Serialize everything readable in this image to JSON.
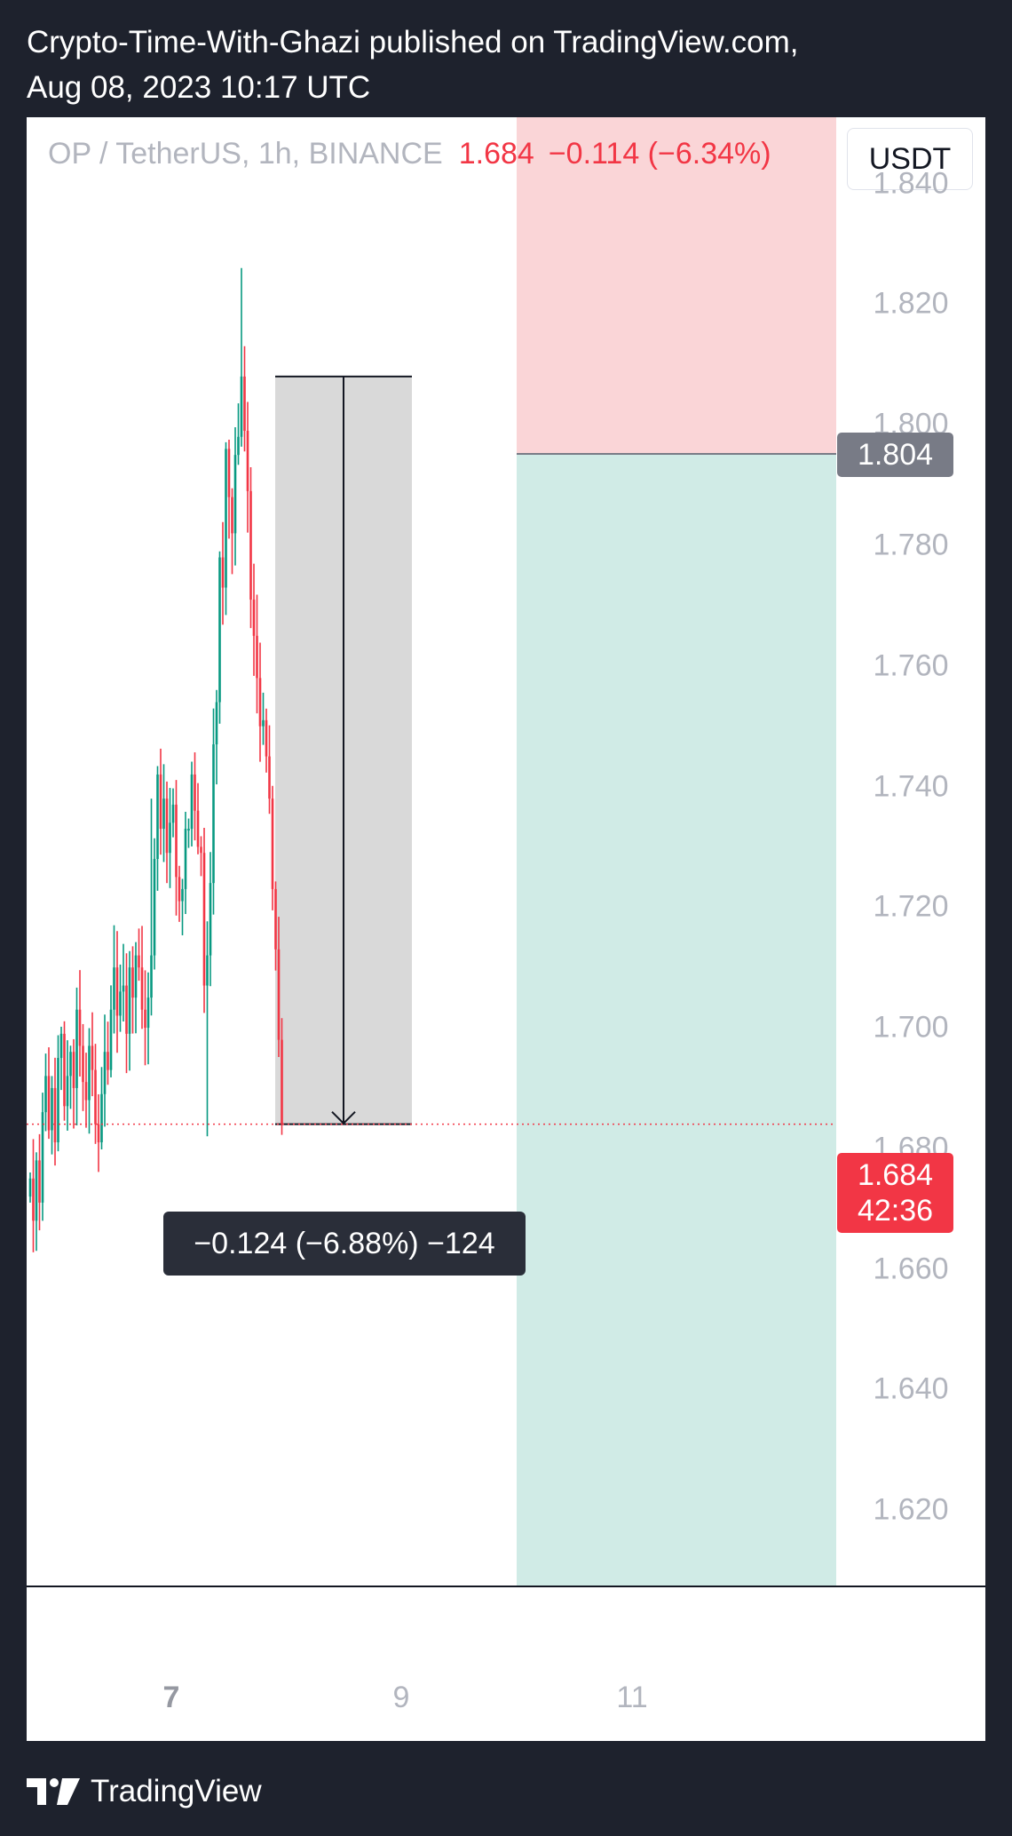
{
  "header": {
    "published_line1": "Crypto-Time-With-Ghazi published on TradingView.com,",
    "published_line2": "Aug 08, 2023 10:17 UTC"
  },
  "symbol": {
    "pair": "OP / TetherUS, 1h, BINANCE",
    "last_price": "1.684",
    "change": "−0.114 (−6.34%)"
  },
  "currency_button": "USDT",
  "price_tags": {
    "target_level": "1.804",
    "current_price": "1.684",
    "countdown": "42:36"
  },
  "measure": {
    "label": "−0.124 (−6.88%) −124",
    "from_price": 1.808,
    "to_price": 1.684
  },
  "brand": {
    "name": "TradingView"
  },
  "colors": {
    "up": "#089981",
    "down": "#f23645",
    "zone_red": "#fad5d7",
    "zone_green": "#d0ebe6",
    "measure_fill": "#d9d9d9"
  },
  "chart_data": {
    "type": "candlestick",
    "timeframe": "1h",
    "y_ticks": [
      "1.840",
      "1.820",
      "1.800",
      "1.780",
      "1.760",
      "1.740",
      "1.720",
      "1.700",
      "1.680",
      "1.660",
      "1.640",
      "1.620"
    ],
    "y_tick_values": [
      1.84,
      1.82,
      1.8,
      1.78,
      1.76,
      1.74,
      1.72,
      1.7,
      1.68,
      1.66,
      1.64,
      1.62
    ],
    "x_ticks": [
      {
        "label": "7",
        "bold": true
      },
      {
        "label": "9",
        "bold": false
      },
      {
        "label": "11",
        "bold": false
      }
    ],
    "ylim": [
      1.6075,
      1.851
    ],
    "current_price": 1.684,
    "horizontal_levels": [
      1.804
    ],
    "candles_close": [
      1.675,
      1.668,
      1.678,
      1.671,
      1.686,
      1.692,
      1.683,
      1.69,
      1.681,
      1.695,
      1.699,
      1.687,
      1.692,
      1.696,
      1.69,
      1.703,
      1.697,
      1.691,
      1.688,
      1.697,
      1.693,
      1.684,
      1.681,
      1.689,
      1.696,
      1.693,
      1.703,
      1.71,
      1.702,
      1.706,
      1.707,
      1.699,
      1.71,
      1.705,
      1.712,
      1.71,
      1.703,
      1.7,
      1.705,
      1.712,
      1.728,
      1.742,
      1.733,
      1.738,
      1.729,
      1.734,
      1.737,
      1.725,
      1.721,
      1.723,
      1.733,
      1.733,
      1.742,
      1.736,
      1.73,
      1.729,
      1.707,
      1.712,
      1.724,
      1.747,
      1.754,
      1.778,
      1.773,
      1.796,
      1.788,
      1.782,
      1.795,
      1.798,
      1.808,
      1.799,
      1.789,
      1.771,
      1.765,
      1.758,
      1.75,
      1.751,
      1.745,
      1.738,
      1.723,
      1.713,
      1.698,
      1.684
    ]
  }
}
